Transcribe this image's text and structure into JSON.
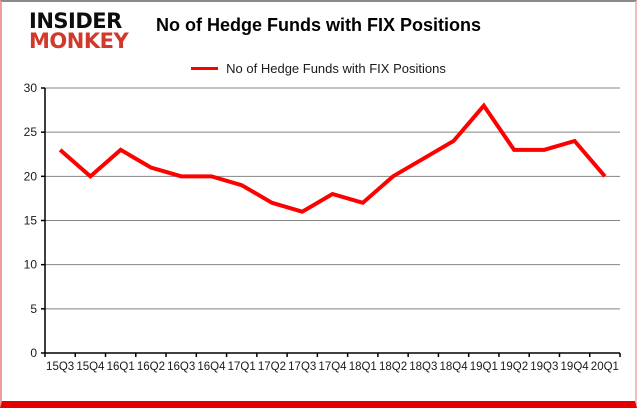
{
  "logo": {
    "line1": "INSIDER",
    "line2": "MONKEY"
  },
  "header": {
    "title": "No of Hedge Funds with FIX Positions"
  },
  "legend": {
    "label": "No of Hedge Funds with FIX Positions",
    "swatch_color": "#ff0000"
  },
  "colors": {
    "line": "#ff0000",
    "gridline": "#848484",
    "axis": "#000000",
    "tick_label": "#1a1a1a"
  },
  "chart_data": {
    "type": "line",
    "title": "No of Hedge Funds with FIX Positions",
    "categories": [
      "15Q3",
      "15Q4",
      "16Q1",
      "16Q2",
      "16Q3",
      "16Q4",
      "17Q1",
      "17Q2",
      "17Q3",
      "17Q4",
      "18Q1",
      "18Q2",
      "18Q3",
      "18Q4",
      "19Q1",
      "19Q2",
      "19Q3",
      "19Q4",
      "20Q1"
    ],
    "series": [
      {
        "name": "No of Hedge Funds with FIX Positions",
        "color": "#ff0000",
        "values": [
          23,
          20,
          23,
          21,
          20,
          20,
          19,
          17,
          16,
          18,
          17,
          20,
          22,
          24,
          28,
          23,
          23,
          24,
          20
        ]
      }
    ],
    "xlabel": "",
    "ylabel": "",
    "ylim": [
      0,
      30
    ],
    "ytick_step": 5,
    "grid": "horizontal",
    "legend_position": "top"
  }
}
